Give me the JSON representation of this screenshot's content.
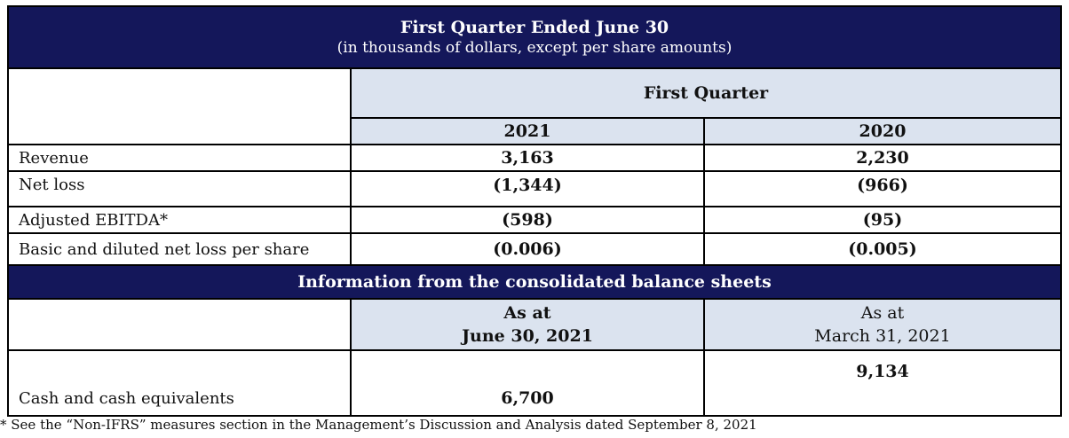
{
  "header": {
    "title": "First Quarter Ended June 30",
    "subtitle": "(in thousands of dollars, except per share amounts)"
  },
  "period_header": "First Quarter",
  "years": [
    "2021",
    "2020"
  ],
  "rows": [
    {
      "label": "Revenue",
      "v2021": "3,163",
      "v2020": "2,230"
    },
    {
      "label": "Net loss",
      "v2021": "(1,344)",
      "v2020": "(966)"
    },
    {
      "label": "Adjusted EBITDA*",
      "v2021": "(598)",
      "v2020": "(95)"
    },
    {
      "label": "Basic and diluted net loss per share",
      "v2021": "(0.006)",
      "v2020": "(0.005)"
    }
  ],
  "balance_header": "Information from the consolidated balance sheets",
  "balance_cols": [
    {
      "line1": "As at",
      "line2": "June 30, 2021"
    },
    {
      "line1": "As at",
      "line2": "March 31, 2021"
    }
  ],
  "balance_rows": [
    {
      "label": "Cash and cash equivalents",
      "v1": "6,700",
      "v2": "9,134"
    }
  ],
  "footnote": "* See the “Non-IFRS” measures section in the Management’s Discussion and Analysis dated September 8, 2021"
}
